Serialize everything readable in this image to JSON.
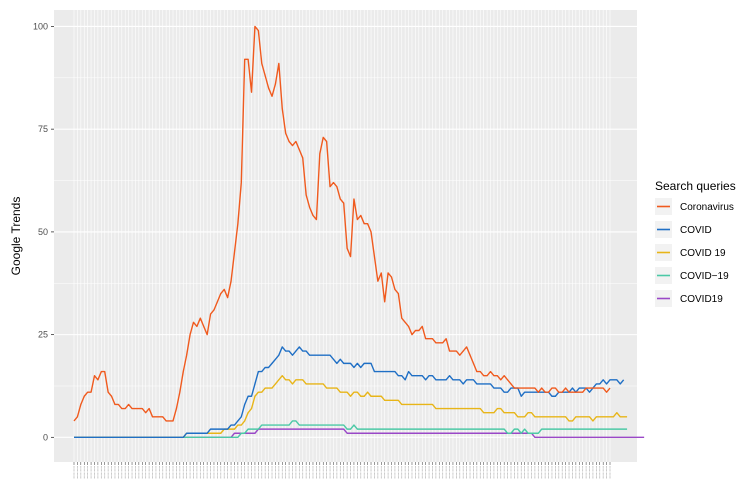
{
  "chart_data": {
    "type": "line",
    "ylabel": "Google Trends",
    "ylim": [
      -6,
      104
    ],
    "yticks": [
      0,
      25,
      50,
      75,
      100
    ],
    "grid": true,
    "legend": {
      "title": "Search queries",
      "position": "right"
    },
    "series": [
      {
        "name": "Coronavirus",
        "color": "#F05A1E",
        "values": [
          4,
          5,
          8,
          10,
          11,
          11,
          15,
          14,
          16,
          16,
          11,
          10,
          8,
          8,
          7,
          7,
          8,
          7,
          7,
          7,
          7,
          6,
          7,
          5,
          5,
          5,
          5,
          4,
          4,
          4,
          7,
          11,
          16,
          20,
          25,
          28,
          27,
          29,
          27,
          25,
          30,
          31,
          33,
          35,
          36,
          34,
          38,
          45,
          52,
          62,
          92,
          92,
          84,
          100,
          99,
          91,
          88,
          85,
          83,
          86,
          91,
          80,
          74,
          72,
          71,
          72,
          70,
          68,
          59,
          56,
          54,
          53,
          69,
          73,
          72,
          61,
          62,
          61,
          58,
          57,
          46,
          44,
          58,
          53,
          54,
          52,
          52,
          50,
          44,
          38,
          40,
          33,
          40,
          39,
          36,
          35,
          29,
          28,
          27,
          25,
          26,
          26,
          27,
          24,
          24,
          24,
          23,
          23,
          23,
          24,
          21,
          21,
          21,
          20,
          21,
          22,
          20,
          18,
          16,
          16,
          15,
          15,
          16,
          15,
          15,
          14,
          15,
          14,
          13,
          12,
          12,
          12,
          12,
          12,
          12,
          12,
          11,
          12,
          11,
          11,
          12,
          12,
          11,
          11,
          12,
          11,
          11,
          11,
          11,
          11,
          12,
          12,
          12,
          12,
          12,
          12,
          11,
          12
        ]
      },
      {
        "name": "COVID",
        "color": "#1F6FC5",
        "values": [
          0,
          0,
          0,
          0,
          0,
          0,
          0,
          0,
          0,
          0,
          0,
          0,
          0,
          0,
          0,
          0,
          0,
          0,
          0,
          0,
          0,
          0,
          0,
          0,
          0,
          0,
          0,
          0,
          0,
          0,
          0,
          0,
          0,
          1,
          1,
          1,
          1,
          1,
          1,
          1,
          2,
          2,
          2,
          2,
          2,
          2,
          3,
          3,
          4,
          5,
          8,
          10,
          10,
          13,
          16,
          16,
          17,
          17,
          18,
          19,
          20,
          22,
          21,
          21,
          20,
          21,
          22,
          21,
          21,
          20,
          20,
          20,
          20,
          20,
          20,
          20,
          19,
          18,
          19,
          18,
          18,
          18,
          17,
          18,
          17,
          18,
          18,
          18,
          16,
          16,
          16,
          16,
          16,
          16,
          16,
          15,
          15,
          14,
          16,
          15,
          15,
          15,
          15,
          14,
          15,
          15,
          14,
          14,
          14,
          14,
          15,
          14,
          14,
          14,
          13,
          14,
          14,
          14,
          13,
          13,
          13,
          13,
          13,
          12,
          12,
          12,
          11,
          11,
          12,
          12,
          12,
          10,
          11,
          11,
          11,
          11,
          11,
          11,
          11,
          11,
          10,
          10,
          11,
          11,
          11,
          11,
          12,
          11,
          12,
          12,
          12,
          11,
          12,
          13,
          13,
          14,
          13,
          14,
          14,
          14,
          13,
          14
        ]
      },
      {
        "name": "COVID 19",
        "color": "#E8B518",
        "values": [
          0,
          0,
          0,
          0,
          0,
          0,
          0,
          0,
          0,
          0,
          0,
          0,
          0,
          0,
          0,
          0,
          0,
          0,
          0,
          0,
          0,
          0,
          0,
          0,
          0,
          0,
          0,
          0,
          0,
          0,
          0,
          0,
          0,
          1,
          1,
          1,
          1,
          1,
          1,
          1,
          1,
          1,
          1,
          1,
          2,
          2,
          2,
          2,
          3,
          3,
          4,
          6,
          7,
          10,
          11,
          11,
          12,
          12,
          12,
          13,
          14,
          15,
          14,
          14,
          13,
          14,
          14,
          14,
          13,
          13,
          13,
          13,
          13,
          13,
          12,
          12,
          12,
          12,
          11,
          11,
          11,
          10,
          11,
          11,
          10,
          10,
          11,
          10,
          10,
          10,
          10,
          9,
          9,
          9,
          9,
          9,
          8,
          8,
          8,
          8,
          8,
          8,
          8,
          8,
          8,
          8,
          7,
          7,
          7,
          7,
          7,
          7,
          7,
          7,
          7,
          7,
          7,
          7,
          7,
          7,
          6,
          6,
          6,
          6,
          7,
          7,
          6,
          6,
          6,
          6,
          5,
          5,
          5,
          6,
          6,
          5,
          5,
          5,
          5,
          5,
          5,
          5,
          5,
          5,
          5,
          4,
          4,
          5,
          5,
          5,
          5,
          5,
          4,
          5,
          5,
          5,
          5,
          5,
          5,
          6,
          5,
          5,
          5
        ]
      },
      {
        "name": "COVID−19",
        "color": "#4CC9A6",
        "values": [
          0,
          0,
          0,
          0,
          0,
          0,
          0,
          0,
          0,
          0,
          0,
          0,
          0,
          0,
          0,
          0,
          0,
          0,
          0,
          0,
          0,
          0,
          0,
          0,
          0,
          0,
          0,
          0,
          0,
          0,
          0,
          0,
          0,
          0,
          0,
          0,
          0,
          0,
          0,
          0,
          0,
          0,
          0,
          0,
          0,
          0,
          0,
          0,
          0,
          1,
          1,
          2,
          2,
          2,
          2,
          3,
          3,
          3,
          3,
          3,
          3,
          3,
          3,
          3,
          4,
          4,
          3,
          3,
          3,
          3,
          3,
          3,
          3,
          3,
          3,
          3,
          3,
          3,
          3,
          3,
          2,
          2,
          3,
          2,
          2,
          2,
          2,
          2,
          2,
          2,
          2,
          2,
          2,
          2,
          2,
          2,
          2,
          2,
          2,
          2,
          2,
          2,
          2,
          2,
          2,
          2,
          2,
          2,
          2,
          2,
          2,
          2,
          2,
          2,
          2,
          2,
          2,
          2,
          2,
          2,
          2,
          2,
          2,
          2,
          2,
          2,
          2,
          1,
          1,
          2,
          2,
          1,
          2,
          1,
          1,
          1,
          1,
          2,
          2,
          2,
          2,
          2,
          2,
          2,
          2,
          2,
          2,
          2,
          2,
          2,
          2,
          2,
          2,
          2,
          2,
          2,
          2,
          2,
          2,
          2,
          2,
          2,
          2
        ]
      },
      {
        "name": "COVID19",
        "color": "#9A48C7",
        "values": [
          0,
          0,
          0,
          0,
          0,
          0,
          0,
          0,
          0,
          0,
          0,
          0,
          0,
          0,
          0,
          0,
          0,
          0,
          0,
          0,
          0,
          0,
          0,
          0,
          0,
          0,
          0,
          0,
          0,
          0,
          0,
          0,
          0,
          0,
          0,
          0,
          0,
          0,
          0,
          0,
          0,
          0,
          0,
          0,
          0,
          0,
          0,
          1,
          1,
          1,
          1,
          1,
          1,
          1,
          2,
          2,
          2,
          2,
          2,
          2,
          2,
          2,
          2,
          2,
          2,
          2,
          2,
          2,
          2,
          2,
          2,
          2,
          2,
          2,
          2,
          2,
          2,
          2,
          2,
          2,
          1,
          1,
          1,
          1,
          1,
          1,
          1,
          1,
          1,
          1,
          1,
          1,
          1,
          1,
          1,
          1,
          1,
          1,
          1,
          1,
          1,
          1,
          1,
          1,
          1,
          1,
          1,
          1,
          1,
          1,
          1,
          1,
          1,
          1,
          1,
          1,
          1,
          1,
          1,
          1,
          1,
          1,
          1,
          1,
          1,
          1,
          1,
          1,
          1,
          1,
          1,
          1,
          1,
          1,
          1,
          0,
          0,
          0,
          0,
          0,
          0,
          0,
          0,
          0,
          0,
          0,
          0,
          0,
          0,
          0,
          0,
          0,
          0,
          0,
          0,
          0,
          0,
          0,
          0,
          0,
          0,
          0,
          0,
          0,
          0,
          0,
          0,
          0
        ]
      }
    ]
  }
}
